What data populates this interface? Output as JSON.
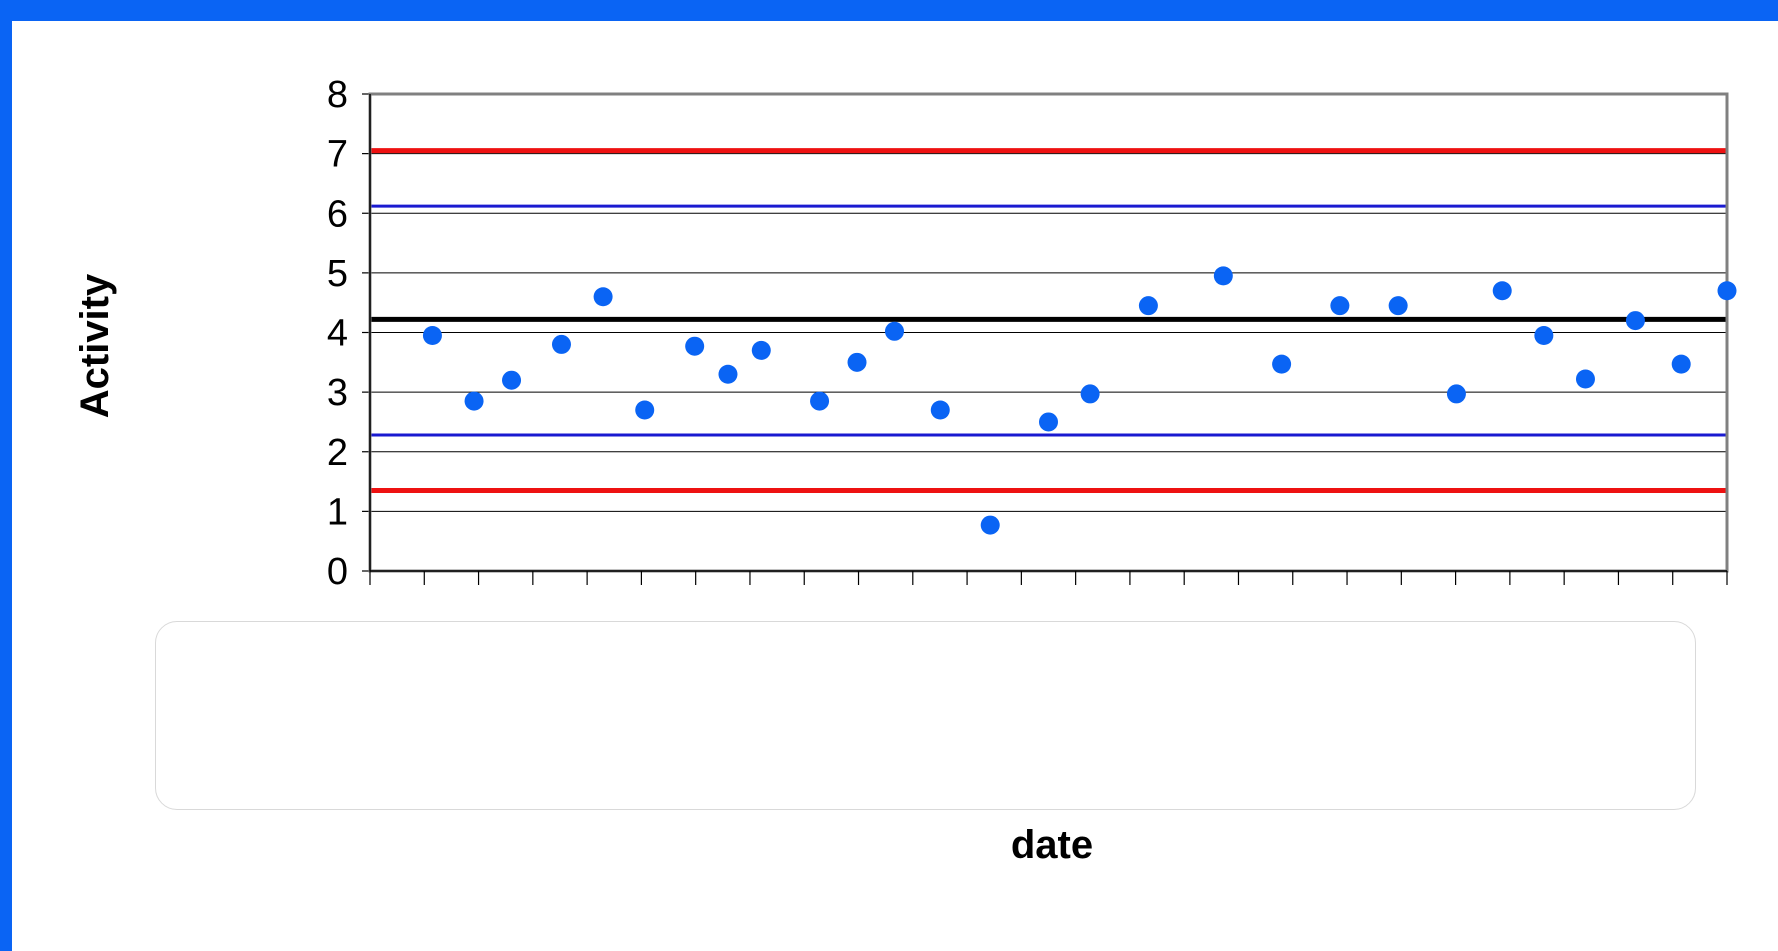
{
  "chart_data": {
    "type": "scatter",
    "xlabel": "date",
    "ylabel": "Activity",
    "ylim": [
      0,
      8
    ],
    "yticks": [
      0,
      1,
      2,
      3,
      4,
      5,
      6,
      7,
      8
    ],
    "xlim": [
      0,
      32.6
    ],
    "x_tick_count": 25,
    "grid": true,
    "series": [
      {
        "x": [
          1.5,
          2.5,
          3.4,
          4.6,
          5.6,
          6.6,
          7.8,
          8.6,
          9.4,
          10.8,
          11.7,
          12.6,
          13.7,
          14.9,
          16.3,
          17.3,
          18.7,
          20.5,
          21.9,
          23.3,
          24.7,
          26.1,
          27.2,
          28.2,
          29.2,
          30.4,
          31.5,
          32.6
        ],
        "y": [
          3.95,
          2.85,
          3.2,
          3.8,
          4.6,
          2.7,
          3.77,
          3.3,
          3.7,
          2.85,
          3.5,
          4.02,
          2.7,
          0.77,
          2.5,
          2.97,
          4.45,
          4.95,
          3.47,
          4.45,
          4.45,
          2.97,
          4.7,
          3.95,
          3.22,
          4.2,
          3.47,
          4.7
        ],
        "color": "#0a64f4"
      }
    ],
    "reference_lines": [
      {
        "y": 4.22,
        "color": "#000000"
      },
      {
        "y": 7.05,
        "color": "#ee1111"
      },
      {
        "y": 1.35,
        "color": "#ee1111"
      },
      {
        "y": 6.12,
        "color": "#1a1ad0"
      },
      {
        "y": 2.28,
        "color": "#1a1ad0"
      }
    ]
  }
}
